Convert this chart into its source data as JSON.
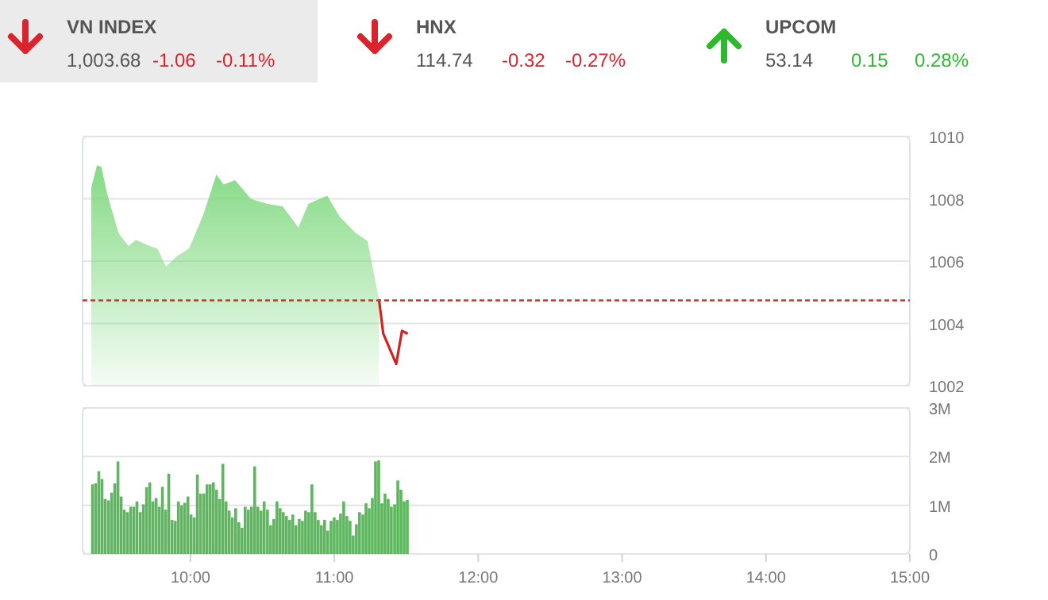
{
  "chart_data": [
    {
      "type": "other",
      "categories": [
        "VN INDEX",
        "HNX",
        "UPCOM"
      ],
      "series": [
        {
          "values": [
            1003.68,
            114.74,
            53.14
          ],
          "value_labels": [
            "1,003.68",
            "114.74",
            "53.14"
          ]
        },
        {
          "values": [
            -1.06,
            -0.32,
            0.15
          ],
          "value_labels": [
            "-1.06",
            "-0.32",
            "0.15"
          ],
          "colors": [
            "#d9232d",
            "#d9232d",
            "#2eb82e"
          ]
        },
        {
          "values": [
            -0.11,
            -0.27,
            0.28
          ],
          "value_labels": [
            "-0.11%",
            "-0.27%",
            "0.28%"
          ],
          "colors": [
            "#d9232d",
            "#d9232d",
            "#2eb82e"
          ]
        }
      ]
    },
    {
      "type": "area",
      "xlim": [
        9.25,
        15
      ],
      "ylim": [
        1002,
        1010
      ],
      "yticks": [
        1002,
        1004,
        1006,
        1008,
        1010
      ],
      "grid": "y",
      "tick_labels": "y",
      "series": [
        {
          "type": "area",
          "color": "#7ed87e",
          "x": [
            9.31,
            9.35,
            9.38,
            9.42,
            9.5,
            9.57,
            9.62,
            9.72,
            9.77,
            9.83,
            9.9,
            9.99,
            10.09,
            10.18,
            10.23,
            10.31,
            10.42,
            10.53,
            10.64,
            10.75,
            10.82,
            10.95,
            11.04,
            11.15,
            11.23,
            11.31
          ],
          "values": [
            1008.35,
            1009.07,
            1009.03,
            1008.18,
            1006.9,
            1006.48,
            1006.68,
            1006.48,
            1006.4,
            1005.83,
            1006.14,
            1006.4,
            1007.5,
            1008.78,
            1008.46,
            1008.6,
            1008.0,
            1007.84,
            1007.76,
            1007.08,
            1007.84,
            1008.1,
            1007.41,
            1006.9,
            1006.65,
            1004.78
          ]
        },
        {
          "type": "line",
          "color": "#d42020",
          "x": [
            11.31,
            11.34,
            11.43,
            11.47,
            11.51
          ],
          "values": [
            1004.78,
            1003.67,
            1002.7,
            1003.76,
            1003.67
          ]
        }
      ],
      "ref_lines": [
        {
          "axis": "y",
          "value": 1004.74,
          "color": "#c0392b",
          "line_style": "dashed"
        }
      ]
    },
    {
      "type": "bar",
      "color": "#5cb85c",
      "xlim": [
        9.25,
        15
      ],
      "xticks": [
        {
          "value": 10,
          "label": "10:00"
        },
        {
          "value": 11,
          "label": "11:00"
        },
        {
          "value": 12,
          "label": "12:00"
        },
        {
          "value": 13,
          "label": "13:00"
        },
        {
          "value": 14,
          "label": "14:00"
        },
        {
          "value": 15,
          "label": "15:00"
        }
      ],
      "ylim": [
        0,
        3
      ],
      "yticks": [
        0,
        {
          "value": 1,
          "label": "1M"
        },
        {
          "value": 2,
          "label": "2M"
        },
        {
          "value": 3,
          "label": "3M"
        }
      ],
      "grid": "y",
      "x": [
        9.319,
        9.341,
        9.363,
        9.385,
        9.407,
        9.43,
        9.452,
        9.474,
        9.496,
        9.518,
        9.54,
        9.562,
        9.584,
        9.606,
        9.628,
        9.651,
        9.673,
        9.695,
        9.717,
        9.739,
        9.761,
        9.783,
        9.805,
        9.827,
        9.849,
        9.872,
        9.894,
        9.916,
        9.938,
        9.96,
        9.982,
        10.004,
        10.026,
        10.048,
        10.07,
        10.093,
        10.115,
        10.137,
        10.159,
        10.181,
        10.203,
        10.225,
        10.247,
        10.269,
        10.291,
        10.314,
        10.336,
        10.358,
        10.38,
        10.402,
        10.424,
        10.446,
        10.468,
        10.49,
        10.512,
        10.535,
        10.557,
        10.579,
        10.601,
        10.623,
        10.645,
        10.667,
        10.689,
        10.711,
        10.733,
        10.756,
        10.778,
        10.8,
        10.822,
        10.844,
        10.866,
        10.888,
        10.91,
        10.932,
        10.954,
        10.977,
        10.999,
        11.021,
        11.043,
        11.065,
        11.087,
        11.109,
        11.131,
        11.153,
        11.175,
        11.198,
        11.22,
        11.242,
        11.264,
        11.286,
        11.308,
        11.33,
        11.352,
        11.374,
        11.396,
        11.419,
        11.441,
        11.463,
        11.485,
        11.507
      ],
      "values": [
        1.43,
        1.45,
        1.7,
        1.54,
        1.13,
        1.1,
        1.26,
        1.45,
        1.9,
        1.18,
        0.91,
        0.86,
        0.97,
        0.97,
        1.08,
        0.86,
        1.02,
        1.37,
        1.47,
        1.08,
        1.15,
        0.97,
        1.38,
        0.91,
        1.65,
        0.7,
        0.68,
        1.08,
        1.0,
        1.05,
        1.18,
        0.81,
        0.75,
        1.63,
        1.24,
        1.24,
        1.43,
        1.43,
        1.47,
        1.32,
        1.13,
        1.85,
        1.08,
        0.89,
        0.75,
        0.94,
        0.65,
        0.54,
        0.97,
        0.91,
        0.97,
        1.8,
        0.97,
        0.89,
        1.08,
        0.91,
        0.59,
        0.72,
        1.08,
        0.94,
        0.86,
        0.78,
        0.7,
        0.81,
        0.59,
        0.72,
        0.68,
        0.89,
        0.86,
        1.43,
        0.86,
        0.7,
        0.59,
        0.7,
        0.48,
        0.68,
        0.75,
        0.7,
        0.83,
        1.08,
        0.78,
        0.68,
        0.38,
        0.61,
        0.86,
        0.81,
        1.04,
        0.94,
        1.15,
        1.9,
        1.92,
        1.04,
        1.24,
        1.13,
        0.97,
        1.02,
        1.51,
        1.32,
        1.08,
        1.11
      ]
    }
  ]
}
